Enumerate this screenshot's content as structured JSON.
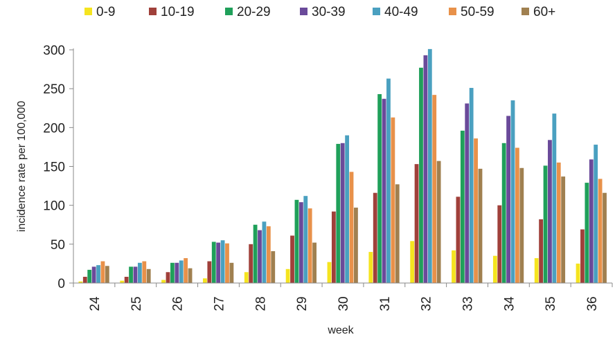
{
  "chart_data": {
    "type": "bar",
    "xlabel": "week",
    "ylabel": "incidence rate per 100,000",
    "ylim": [
      0,
      300
    ],
    "yticks": [
      0,
      50,
      100,
      150,
      200,
      250,
      300
    ],
    "grid": false,
    "legend_position": "top",
    "categories": [
      "24",
      "25",
      "26",
      "27",
      "28",
      "29",
      "30",
      "31",
      "32",
      "33",
      "34",
      "35",
      "36"
    ],
    "series": [
      {
        "name": "0-9",
        "color": "#f5e41f",
        "values": [
          2,
          3,
          4,
          6,
          14,
          18,
          27,
          40,
          54,
          42,
          35,
          32,
          25
        ]
      },
      {
        "name": "10-19",
        "color": "#a0403a",
        "values": [
          8,
          8,
          14,
          28,
          50,
          61,
          92,
          116,
          153,
          111,
          100,
          82,
          69
        ]
      },
      {
        "name": "20-29",
        "color": "#1fa05a",
        "values": [
          17,
          21,
          26,
          53,
          75,
          107,
          179,
          243,
          277,
          196,
          180,
          151,
          129
        ]
      },
      {
        "name": "30-39",
        "color": "#6a4a9a",
        "values": [
          21,
          21,
          26,
          52,
          68,
          104,
          180,
          237,
          293,
          231,
          215,
          184,
          159
        ]
      },
      {
        "name": "40-49",
        "color": "#4aa0c0",
        "values": [
          23,
          26,
          29,
          55,
          79,
          112,
          190,
          263,
          301,
          251,
          235,
          218,
          178
        ]
      },
      {
        "name": "50-59",
        "color": "#e8914a",
        "values": [
          28,
          28,
          32,
          51,
          73,
          96,
          143,
          213,
          242,
          186,
          174,
          155,
          134
        ]
      },
      {
        "name": "60+",
        "color": "#a08050",
        "values": [
          22,
          18,
          19,
          26,
          41,
          52,
          97,
          127,
          157,
          147,
          148,
          137,
          116
        ]
      }
    ]
  }
}
